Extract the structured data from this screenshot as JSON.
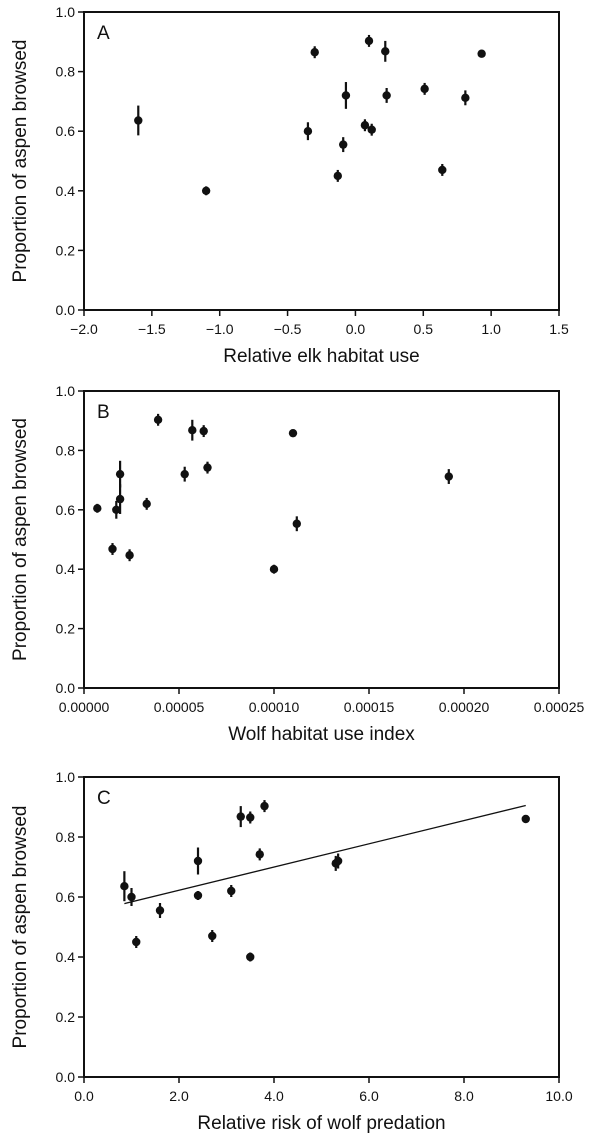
{
  "chart_data": [
    {
      "type": "scatter",
      "panel": "A",
      "xlabel": "Relative elk habitat use",
      "ylabel": "Proportion of aspen browsed",
      "xlim": [
        -2.0,
        1.5
      ],
      "ylim": [
        0.0,
        1.0
      ],
      "xticks": [
        "−2.0",
        "−1.5",
        "−1.0",
        "−0.5",
        "0.0",
        "0.5",
        "1.0",
        "1.5"
      ],
      "yticks": [
        "0.0",
        "0.2",
        "0.4",
        "0.6",
        "0.8",
        "1.0"
      ],
      "grid": false,
      "points": [
        {
          "x": -1.6,
          "y": 0.636,
          "err": 0.05
        },
        {
          "x": -1.1,
          "y": 0.4,
          "err": 0.015
        },
        {
          "x": -0.35,
          "y": 0.6,
          "err": 0.03
        },
        {
          "x": -0.3,
          "y": 0.865,
          "err": 0.02
        },
        {
          "x": -0.13,
          "y": 0.45,
          "err": 0.02
        },
        {
          "x": -0.09,
          "y": 0.555,
          "err": 0.025
        },
        {
          "x": -0.07,
          "y": 0.72,
          "err": 0.045
        },
        {
          "x": 0.07,
          "y": 0.62,
          "err": 0.02
        },
        {
          "x": 0.1,
          "y": 0.903,
          "err": 0.02
        },
        {
          "x": 0.12,
          "y": 0.605,
          "err": 0.02
        },
        {
          "x": 0.22,
          "y": 0.868,
          "err": 0.035
        },
        {
          "x": 0.23,
          "y": 0.72,
          "err": 0.025
        },
        {
          "x": 0.51,
          "y": 0.742,
          "err": 0.02
        },
        {
          "x": 0.64,
          "y": 0.47,
          "err": 0.02
        },
        {
          "x": 0.81,
          "y": 0.712,
          "err": 0.025
        },
        {
          "x": 0.93,
          "y": 0.86,
          "err": 0.0
        }
      ]
    },
    {
      "type": "scatter",
      "panel": "B",
      "xlabel": "Wolf habitat use index",
      "ylabel": "Proportion of aspen browsed",
      "xlim": [
        0.0,
        0.00025
      ],
      "ylim": [
        0.0,
        1.0
      ],
      "xticks": [
        "0.00000",
        "0.00005",
        "0.00010",
        "0.00015",
        "0.00020",
        "0.00025"
      ],
      "yticks": [
        "0.0",
        "0.2",
        "0.4",
        "0.6",
        "0.8",
        "1.0"
      ],
      "grid": false,
      "points": [
        {
          "x": 7e-06,
          "y": 0.605,
          "err": 0.015
        },
        {
          "x": 1.5e-05,
          "y": 0.468,
          "err": 0.02
        },
        {
          "x": 1.7e-05,
          "y": 0.6,
          "err": 0.03
        },
        {
          "x": 1.9e-05,
          "y": 0.72,
          "err": 0.045
        },
        {
          "x": 1.9e-05,
          "y": 0.636,
          "err": 0.05
        },
        {
          "x": 2.4e-05,
          "y": 0.447,
          "err": 0.02
        },
        {
          "x": 3.3e-05,
          "y": 0.62,
          "err": 0.02
        },
        {
          "x": 3.9e-05,
          "y": 0.903,
          "err": 0.02
        },
        {
          "x": 5.3e-05,
          "y": 0.72,
          "err": 0.025
        },
        {
          "x": 5.7e-05,
          "y": 0.868,
          "err": 0.035
        },
        {
          "x": 6.3e-05,
          "y": 0.865,
          "err": 0.02
        },
        {
          "x": 6.5e-05,
          "y": 0.742,
          "err": 0.02
        },
        {
          "x": 0.0001,
          "y": 0.4,
          "err": 0.015
        },
        {
          "x": 0.00011,
          "y": 0.858,
          "err": 0.0
        },
        {
          "x": 0.000112,
          "y": 0.553,
          "err": 0.025
        },
        {
          "x": 0.000192,
          "y": 0.712,
          "err": 0.025
        }
      ]
    },
    {
      "type": "scatter",
      "panel": "C",
      "xlabel": "Relative risk of wolf predation",
      "ylabel": "Proportion of aspen browsed",
      "xlim": [
        0.0,
        10.0
      ],
      "ylim": [
        0.0,
        1.0
      ],
      "xticks": [
        "0.0",
        "2.0",
        "4.0",
        "6.0",
        "8.0",
        "10.0"
      ],
      "yticks": [
        "0.0",
        "0.2",
        "0.4",
        "0.6",
        "0.8",
        "1.0"
      ],
      "grid": false,
      "points": [
        {
          "x": 0.85,
          "y": 0.636,
          "err": 0.05
        },
        {
          "x": 1.0,
          "y": 0.6,
          "err": 0.03
        },
        {
          "x": 1.1,
          "y": 0.45,
          "err": 0.02
        },
        {
          "x": 1.6,
          "y": 0.555,
          "err": 0.025
        },
        {
          "x": 2.4,
          "y": 0.72,
          "err": 0.045
        },
        {
          "x": 2.4,
          "y": 0.605,
          "err": 0.015
        },
        {
          "x": 2.7,
          "y": 0.47,
          "err": 0.02
        },
        {
          "x": 3.1,
          "y": 0.62,
          "err": 0.02
        },
        {
          "x": 3.3,
          "y": 0.868,
          "err": 0.035
        },
        {
          "x": 3.5,
          "y": 0.865,
          "err": 0.02
        },
        {
          "x": 3.5,
          "y": 0.4,
          "err": 0.015
        },
        {
          "x": 3.7,
          "y": 0.742,
          "err": 0.02
        },
        {
          "x": 3.8,
          "y": 0.903,
          "err": 0.02
        },
        {
          "x": 5.3,
          "y": 0.712,
          "err": 0.025
        },
        {
          "x": 5.35,
          "y": 0.72,
          "err": 0.025
        },
        {
          "x": 9.3,
          "y": 0.86,
          "err": 0.0
        }
      ],
      "fit_line": {
        "x": [
          0.85,
          9.3
        ],
        "y": [
          0.578,
          0.905
        ]
      }
    }
  ]
}
